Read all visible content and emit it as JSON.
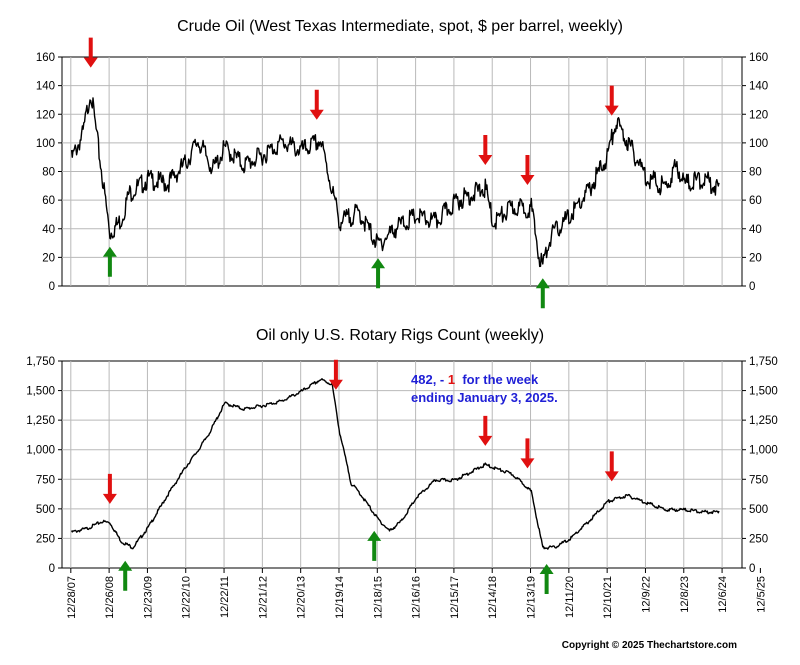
{
  "chart_data": [
    {
      "type": "line",
      "title": "Crude Oil (West Texas Intermediate, spot, $ per barrel, weekly)",
      "ylim": [
        0,
        160
      ],
      "yticks": [
        "0",
        "20",
        "40",
        "60",
        "80",
        "100",
        "120",
        "140",
        "160"
      ],
      "grid": true,
      "x": [
        2008.0,
        2008.3,
        2008.5,
        2008.7,
        2009.0,
        2009.3,
        2009.5,
        2010.0,
        2010.5,
        2011.0,
        2011.3,
        2011.7,
        2012.0,
        2012.5,
        2013.0,
        2013.5,
        2014.0,
        2014.5,
        2015.0,
        2015.5,
        2016.0,
        2016.5,
        2017.0,
        2017.5,
        2018.0,
        2018.8,
        2019.0,
        2019.5,
        2020.0,
        2020.2,
        2020.3,
        2020.5,
        2021.0,
        2021.5,
        2022.0,
        2022.2,
        2022.5,
        2023.0,
        2023.5,
        2023.8,
        2024.0,
        2024.5,
        2024.9
      ],
      "values": [
        92,
        110,
        140,
        100,
        40,
        50,
        68,
        78,
        75,
        90,
        105,
        85,
        100,
        88,
        95,
        104,
        98,
        105,
        48,
        55,
        32,
        45,
        52,
        48,
        62,
        72,
        48,
        58,
        58,
        25,
        18,
        38,
        52,
        70,
        95,
        118,
        105,
        80,
        72,
        88,
        75,
        78,
        72
      ],
      "arrows_down_at": [
        2008.5,
        2014.4,
        2018.8,
        2019.9,
        2022.1
      ],
      "arrows_up_at": [
        2009.0,
        2016.0,
        2020.3
      ]
    },
    {
      "type": "line",
      "title": "Oil only U.S. Rotary Rigs Count (weekly)",
      "ylim": [
        0,
        1750
      ],
      "yticks": [
        "0",
        "250",
        "500",
        "750",
        "1,000",
        "1,250",
        "1,500",
        "1,750"
      ],
      "grid": true,
      "x": [
        2008.0,
        2008.4,
        2008.8,
        2009.0,
        2009.3,
        2009.6,
        2010.0,
        2010.5,
        2011.0,
        2011.3,
        2011.6,
        2012.0,
        2012.5,
        2013.0,
        2013.5,
        2014.0,
        2014.5,
        2014.8,
        2015.0,
        2015.3,
        2015.5,
        2016.0,
        2016.3,
        2016.6,
        2017.0,
        2017.5,
        2018.0,
        2018.8,
        2019.5,
        2019.9,
        2020.0,
        2020.3,
        2020.6,
        2021.0,
        2021.5,
        2022.0,
        2022.5,
        2023.0,
        2023.5,
        2024.0,
        2024.5,
        2024.9
      ],
      "values": [
        310,
        340,
        400,
        390,
        230,
        180,
        350,
        620,
        870,
        1000,
        1150,
        1400,
        1350,
        1380,
        1420,
        1500,
        1600,
        1560,
        1150,
        720,
        650,
        420,
        320,
        400,
        600,
        750,
        750,
        880,
        800,
        690,
        650,
        180,
        180,
        250,
        400,
        570,
        620,
        560,
        500,
        500,
        480,
        482
      ],
      "xticks": [
        "12/28/07",
        "12/26/08",
        "12/23/09",
        "12/22/10",
        "12/22/11",
        "12/21/12",
        "12/20/13",
        "12/19/14",
        "12/18/15",
        "12/16/16",
        "12/15/17",
        "12/14/18",
        "12/13/19",
        "12/11/20",
        "12/10/21",
        "12/9/22",
        "12/8/23",
        "12/6/24",
        "12/5/25"
      ],
      "arrows_down_at": [
        2009.0,
        2014.9,
        2018.8,
        2019.9,
        2022.1
      ],
      "arrows_up_at": [
        2009.4,
        2015.9,
        2020.4
      ],
      "annotation": {
        "line1_a": "482, - ",
        "line1_b": "1",
        "line1_c": "  for the week",
        "line2": "ending January 3, 2025."
      }
    }
  ],
  "credit": "Copyright © 2025 Thechartstore.com",
  "colors": {
    "series": "#000000",
    "grid": "#b9b9b9",
    "arrow_down": "#e01010",
    "arrow_up": "#118811",
    "annotation_blue": "#1f1fd6",
    "annotation_red": "#e01010"
  }
}
